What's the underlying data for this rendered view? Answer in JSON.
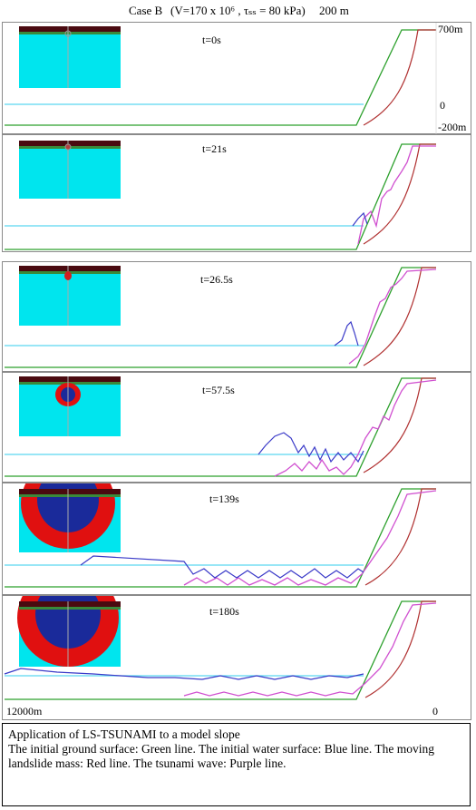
{
  "header": {
    "case": "Case B",
    "params": "(V=170 x 10⁶ , τₛₛ = 80 kPa)",
    "scale": "200 m"
  },
  "axis": {
    "y_top": "700m",
    "y_zero": "0",
    "y_bottom": "-200m",
    "x_left": "12000m",
    "x_right": "0"
  },
  "panels": [
    {
      "time": "t=0s"
    },
    {
      "time": "t=21s"
    },
    {
      "time": "t=26.5s"
    },
    {
      "time": "t=57.5s"
    },
    {
      "time": "t=139s"
    },
    {
      "time": "t=180s"
    }
  ],
  "caption": {
    "title": "Application of LS-TSUNAMI to a model slope",
    "body": "The initial ground surface: Green line. The initial water surface: Blue line. The moving landslide mass: Red line. The tsunami wave: Purple line."
  },
  "colors": {
    "ground": "#2ca02c",
    "water": "#5ad6f0",
    "landslide": "#b03030",
    "tsunami": "#d050d0",
    "wave_blue": "#3a3ac8",
    "inset_water": "#00e5ee",
    "inset_red": "#ff0000",
    "inset_dark": "#4a0a10"
  }
}
